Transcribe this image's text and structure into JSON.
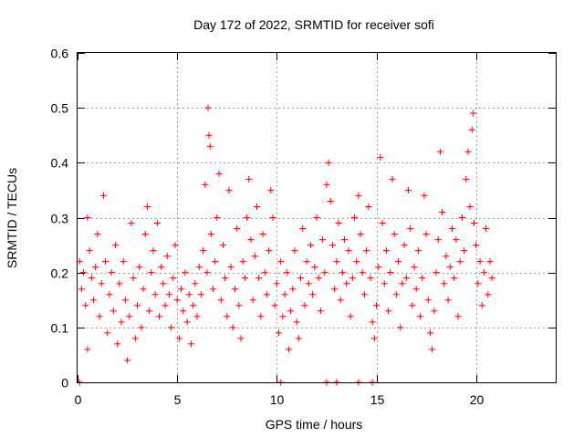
{
  "chart_data": {
    "type": "scatter",
    "title": "Day 172 of 2022, SRMTID for receiver sofi",
    "xlabel": "GPS time / hours",
    "ylabel": "SRMTID / TECUs",
    "xlim": [
      0,
      24
    ],
    "ylim": [
      0,
      0.6
    ],
    "xticks": [
      0,
      5,
      10,
      15,
      20
    ],
    "yticks": [
      0,
      0.1,
      0.2,
      0.3,
      0.4,
      0.5,
      0.6
    ],
    "xtick_labels": [
      "0",
      "5",
      "10",
      "15",
      "20"
    ],
    "ytick_labels": [
      "0",
      "0.1",
      "0.2",
      "0.3",
      "0.4",
      "0.5",
      "0.6"
    ],
    "grid": true,
    "marker": "+",
    "color": "#ff0000",
    "series": [
      {
        "name": "SRMTID",
        "points": [
          [
            0.1,
            0.22
          ],
          [
            0.2,
            0.17
          ],
          [
            0.3,
            0.2
          ],
          [
            0.4,
            0.14
          ],
          [
            0.5,
            0.3
          ],
          [
            0.5,
            0.06
          ],
          [
            0.6,
            0.24
          ],
          [
            0.7,
            0.19
          ],
          [
            0.8,
            0.15
          ],
          [
            0.9,
            0.21
          ],
          [
            1.0,
            0.27
          ],
          [
            1.1,
            0.12
          ],
          [
            1.2,
            0.18
          ],
          [
            1.3,
            0.34
          ],
          [
            1.4,
            0.22
          ],
          [
            1.5,
            0.09
          ],
          [
            1.6,
            0.16
          ],
          [
            1.7,
            0.2
          ],
          [
            1.8,
            0.13
          ],
          [
            1.9,
            0.25
          ],
          [
            2.0,
            0.07
          ],
          [
            2.1,
            0.18
          ],
          [
            2.2,
            0.11
          ],
          [
            2.3,
            0.22
          ],
          [
            2.4,
            0.15
          ],
          [
            2.5,
            0.04
          ],
          [
            2.6,
            0.12
          ],
          [
            2.7,
            0.29
          ],
          [
            2.8,
            0.19
          ],
          [
            2.9,
            0.08
          ],
          [
            3.0,
            0.14
          ],
          [
            3.1,
            0.21
          ],
          [
            3.2,
            0.1
          ],
          [
            3.3,
            0.17
          ],
          [
            3.4,
            0.27
          ],
          [
            3.5,
            0.32
          ],
          [
            3.6,
            0.13
          ],
          [
            3.7,
            0.2
          ],
          [
            3.8,
            0.24
          ],
          [
            3.9,
            0.16
          ],
          [
            4.0,
            0.29
          ],
          [
            4.1,
            0.12
          ],
          [
            4.2,
            0.21
          ],
          [
            4.3,
            0.18
          ],
          [
            4.4,
            0.14
          ],
          [
            4.5,
            0.23
          ],
          [
            4.6,
            0.16
          ],
          [
            4.7,
            0.1
          ],
          [
            4.8,
            0.19
          ],
          [
            4.9,
            0.25
          ],
          [
            5.0,
            0.15
          ],
          [
            5.1,
            0.08
          ],
          [
            5.2,
            0.17
          ],
          [
            5.3,
            0.13
          ],
          [
            5.4,
            0.2
          ],
          [
            5.5,
            0.11
          ],
          [
            5.6,
            0.16
          ],
          [
            5.7,
            0.07
          ],
          [
            5.8,
            0.14
          ],
          [
            5.9,
            0.18
          ],
          [
            6.0,
            0.12
          ],
          [
            6.1,
            0.21
          ],
          [
            6.2,
            0.16
          ],
          [
            6.3,
            0.24
          ],
          [
            6.4,
            0.36
          ],
          [
            6.5,
            0.2
          ],
          [
            6.55,
            0.5
          ],
          [
            6.6,
            0.45
          ],
          [
            6.65,
            0.43
          ],
          [
            6.7,
            0.27
          ],
          [
            6.8,
            0.17
          ],
          [
            6.9,
            0.22
          ],
          [
            7.0,
            0.3
          ],
          [
            7.1,
            0.38
          ],
          [
            7.2,
            0.15
          ],
          [
            7.3,
            0.25
          ],
          [
            7.4,
            0.19
          ],
          [
            7.5,
            0.12
          ],
          [
            7.6,
            0.35
          ],
          [
            7.7,
            0.21
          ],
          [
            7.8,
            0.1
          ],
          [
            7.9,
            0.17
          ],
          [
            8.0,
            0.28
          ],
          [
            8.1,
            0.14
          ],
          [
            8.2,
            0.08
          ],
          [
            8.3,
            0.22
          ],
          [
            8.4,
            0.19
          ],
          [
            8.5,
            0.3
          ],
          [
            8.6,
            0.37
          ],
          [
            8.7,
            0.26
          ],
          [
            8.8,
            0.15
          ],
          [
            8.9,
            0.23
          ],
          [
            9.0,
            0.32
          ],
          [
            9.1,
            0.19
          ],
          [
            9.2,
            0.12
          ],
          [
            9.3,
            0.27
          ],
          [
            9.4,
            0.2
          ],
          [
            9.5,
            0.16
          ],
          [
            9.6,
            0.24
          ],
          [
            9.7,
            0.35
          ],
          [
            9.8,
            0.3
          ],
          [
            9.9,
            0.14
          ],
          [
            10.0,
            0.18
          ],
          [
            10.1,
            0.09
          ],
          [
            10.2,
            0.22
          ],
          [
            10.3,
            0.12
          ],
          [
            10.4,
            0.16
          ],
          [
            10.5,
            0.2
          ],
          [
            10.6,
            0.06
          ],
          [
            10.7,
            0.13
          ],
          [
            10.8,
            0.17
          ],
          [
            10.9,
            0.24
          ],
          [
            11.0,
            0.11
          ],
          [
            11.1,
            0.08
          ],
          [
            11.2,
            0.19
          ],
          [
            11.3,
            0.28
          ],
          [
            11.4,
            0.14
          ],
          [
            11.5,
            0.22
          ],
          [
            11.6,
            0.18
          ],
          [
            11.7,
            0.25
          ],
          [
            11.8,
            0.16
          ],
          [
            11.9,
            0.21
          ],
          [
            12.0,
            0.3
          ],
          [
            12.1,
            0.19
          ],
          [
            12.2,
            0.13
          ],
          [
            12.3,
            0.26
          ],
          [
            12.4,
            0.2
          ],
          [
            12.5,
            0.36
          ],
          [
            12.6,
            0.4
          ],
          [
            12.7,
            0.33
          ],
          [
            12.8,
            0.25
          ],
          [
            12.9,
            0.17
          ],
          [
            13.0,
            0.22
          ],
          [
            13.1,
            0.29
          ],
          [
            13.2,
            0.15
          ],
          [
            13.3,
            0.2
          ],
          [
            13.4,
            0.26
          ],
          [
            13.5,
            0.18
          ],
          [
            13.6,
            0.24
          ],
          [
            13.7,
            0.12
          ],
          [
            13.8,
            0.19
          ],
          [
            13.9,
            0.3
          ],
          [
            14.0,
            0.22
          ],
          [
            14.1,
            0.34
          ],
          [
            14.2,
            0.27
          ],
          [
            14.3,
            0.2
          ],
          [
            14.4,
            0.16
          ],
          [
            14.5,
            0.24
          ],
          [
            14.6,
            0.32
          ],
          [
            14.7,
            0.19
          ],
          [
            14.8,
            0.11
          ],
          [
            14.9,
            0.08
          ],
          [
            15.0,
            0.14
          ],
          [
            15.1,
            0.21
          ],
          [
            15.2,
            0.41
          ],
          [
            15.3,
            0.29
          ],
          [
            15.4,
            0.18
          ],
          [
            15.5,
            0.24
          ],
          [
            15.6,
            0.13
          ],
          [
            15.7,
            0.2
          ],
          [
            15.8,
            0.37
          ],
          [
            15.9,
            0.27
          ],
          [
            16.0,
            0.16
          ],
          [
            16.1,
            0.22
          ],
          [
            16.2,
            0.1
          ],
          [
            16.3,
            0.18
          ],
          [
            16.4,
            0.25
          ],
          [
            16.5,
            0.19
          ],
          [
            16.6,
            0.35
          ],
          [
            16.7,
            0.28
          ],
          [
            16.8,
            0.14
          ],
          [
            16.9,
            0.21
          ],
          [
            17.0,
            0.17
          ],
          [
            17.1,
            0.24
          ],
          [
            17.2,
            0.12
          ],
          [
            17.3,
            0.19
          ],
          [
            17.4,
            0.34
          ],
          [
            17.5,
            0.27
          ],
          [
            17.6,
            0.15
          ],
          [
            17.7,
            0.09
          ],
          [
            17.8,
            0.06
          ],
          [
            17.9,
            0.13
          ],
          [
            18.0,
            0.2
          ],
          [
            18.1,
            0.26
          ],
          [
            18.2,
            0.42
          ],
          [
            18.3,
            0.31
          ],
          [
            18.4,
            0.18
          ],
          [
            18.5,
            0.23
          ],
          [
            18.6,
            0.15
          ],
          [
            18.7,
            0.21
          ],
          [
            18.8,
            0.28
          ],
          [
            18.9,
            0.19
          ],
          [
            19.0,
            0.26
          ],
          [
            19.1,
            0.12
          ],
          [
            19.2,
            0.22
          ],
          [
            19.3,
            0.3
          ],
          [
            19.4,
            0.24
          ],
          [
            19.5,
            0.37
          ],
          [
            19.6,
            0.42
          ],
          [
            19.7,
            0.32
          ],
          [
            19.8,
            0.46
          ],
          [
            19.85,
            0.49
          ],
          [
            19.9,
            0.29
          ],
          [
            20.0,
            0.25
          ],
          [
            20.1,
            0.18
          ],
          [
            20.2,
            0.22
          ],
          [
            20.3,
            0.14
          ],
          [
            20.4,
            0.2
          ],
          [
            20.5,
            0.28
          ],
          [
            20.6,
            0.16
          ],
          [
            20.7,
            0.22
          ],
          [
            20.8,
            0.19
          ]
        ]
      }
    ],
    "zero_markers_x": [
      0.1,
      10.2,
      12.5,
      13.0,
      14.1,
      14.8
    ]
  }
}
